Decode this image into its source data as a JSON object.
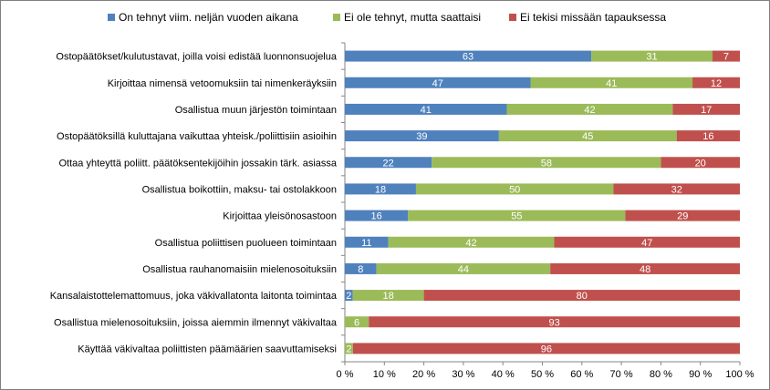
{
  "chart_data": {
    "type": "bar",
    "orientation": "horizontal",
    "stacked": "percent",
    "categories": [
      "Ostopäätökset/kulutustavat, joilla voisi edistää luonnonsuojelua",
      "Kirjoittaa nimensä vetoomuksiin tai nimenkeräyksiin",
      "Osallistua muun järjestön toimintaan",
      "Ostopäätöksillä kuluttajana vaikuttaa yhteisk./poliittisiin asioihin",
      "Ottaa yhteyttä poliitt. päätöksentekijöihin jossakin tärk. asiassa",
      "Osallistua boikottiin, maksu- tai ostolakkoon",
      "Kirjoittaa yleisönosastoon",
      "Osallistua poliittisen puolueen toimintaan",
      "Osallistua rauhanomaisiin mielenosoituksiin",
      "Kansalaistottelemattomuus, joka väkivallatonta laitonta toimintaa",
      "Osallistua mielenosoituksiin, joissa aiemmin ilmennyt väkivaltaa",
      "Käyttää väkivaltaa poliittisten päämäärien saavuttamiseksi"
    ],
    "series": [
      {
        "name": "On tehnyt viim. neljän vuoden aikana",
        "color": "#4F81BD",
        "values": [
          63,
          47,
          41,
          39,
          22,
          18,
          16,
          11,
          8,
          2,
          0,
          0
        ]
      },
      {
        "name": "Ei ole tehnyt, mutta saattaisi",
        "color": "#9BBB59",
        "values": [
          31,
          41,
          42,
          45,
          58,
          50,
          55,
          42,
          44,
          18,
          6,
          2
        ]
      },
      {
        "name": "Ei tekisi missään tapauksessa",
        "color": "#C0504D",
        "values": [
          7,
          12,
          17,
          16,
          20,
          32,
          29,
          47,
          48,
          80,
          93,
          96
        ]
      }
    ],
    "xlim": [
      0,
      100
    ],
    "xticks": [
      "0 %",
      "10 %",
      "20 %",
      "30 %",
      "40 %",
      "50 %",
      "60 %",
      "70 %",
      "80 %",
      "90 %",
      "100 %"
    ],
    "legend_position": "top",
    "grid": false
  }
}
